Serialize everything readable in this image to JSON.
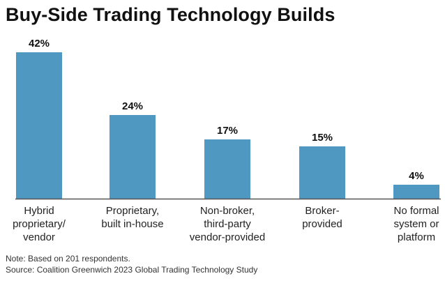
{
  "title": "Buy-Side Trading Technology Builds",
  "chart_data": {
    "type": "bar",
    "title": "Buy-Side Trading Technology Builds",
    "categories": [
      [
        "Hybrid",
        "proprietary/",
        "vendor"
      ],
      [
        "Proprietary,",
        "built in-house"
      ],
      [
        "Non-broker,",
        "third-party",
        "vendor-provided"
      ],
      [
        "Broker-",
        "provided"
      ],
      [
        "No formal",
        "system or",
        "platform"
      ]
    ],
    "values": [
      42,
      24,
      17,
      15,
      4
    ],
    "data_labels": [
      "42%",
      "24%",
      "17%",
      "15%",
      "4%"
    ],
    "unit": "%",
    "ylim": [
      0,
      42
    ],
    "grid": false,
    "legend": "none",
    "bar_color": "#4F98C2",
    "axis_color": "#555555"
  },
  "notes": {
    "note": "Note: Based on 201 respondents.",
    "source": "Source: Coalition Greenwich 2023 Global Trading Technology Study"
  }
}
